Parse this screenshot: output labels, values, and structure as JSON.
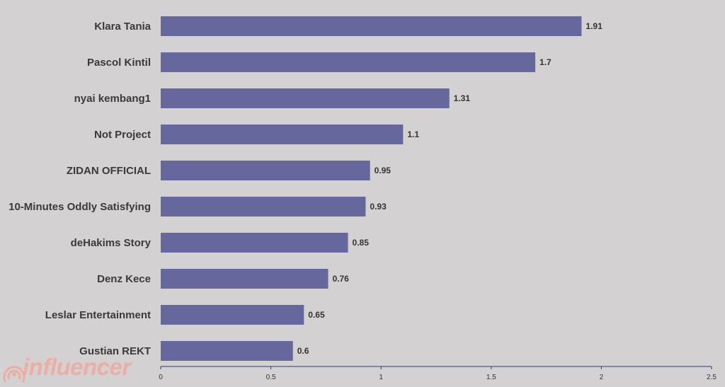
{
  "colors": {
    "bar": "#66679c",
    "background": "#d3d1d1",
    "axis": "#2f3a6e",
    "logo": "#f1a79a"
  },
  "logo": {
    "text": "influencer",
    "icon": "signal-waves-icon"
  },
  "chart_data": {
    "type": "bar",
    "orientation": "horizontal",
    "categories": [
      "Klara Tania",
      "Pascol Kintil",
      "nyai kembang1",
      "Not Project",
      "ZIDAN OFFICIAL",
      "10-Minutes Oddly Satisfying",
      "deHakims Story",
      "Denz Kece",
      "Leslar Entertainment",
      "Gustian REKT"
    ],
    "values": [
      1.91,
      1.7,
      1.31,
      1.1,
      0.95,
      0.93,
      0.85,
      0.76,
      0.65,
      0.6
    ],
    "value_labels": [
      "1.91",
      "1.7",
      "1.31",
      "1.1",
      "0.95",
      "0.93",
      "0.85",
      "0.76",
      "0.65",
      "0.6"
    ],
    "xlim": [
      0,
      2.5
    ],
    "xticks": [
      0,
      0.5,
      1,
      1.5,
      2,
      2.5
    ],
    "xtick_labels": [
      "0",
      "0.5",
      "1",
      "1.5",
      "2",
      "2.5"
    ],
    "grid": false,
    "legend": "none"
  }
}
